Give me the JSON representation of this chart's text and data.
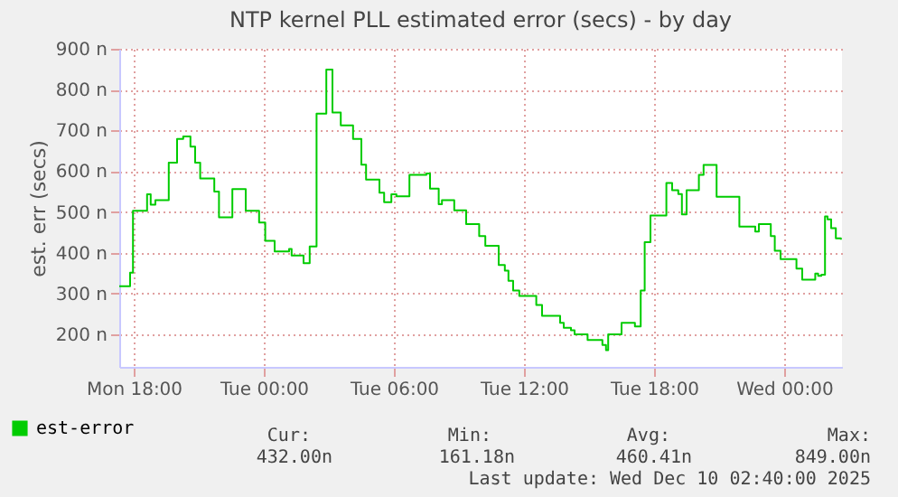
{
  "chart_data": {
    "type": "step",
    "title": "NTP kernel PLL estimated error (secs) - by day",
    "ylabel": "est. err (secs)",
    "xlim": [
      "2025-12-08T17:20",
      "2025-12-10T02:40"
    ],
    "xticks": [
      {
        "value": "2025-12-08T18:00",
        "label": "Mon 18:00"
      },
      {
        "value": "2025-12-09T00:00",
        "label": "Tue 00:00"
      },
      {
        "value": "2025-12-09T06:00",
        "label": "Tue 06:00"
      },
      {
        "value": "2025-12-09T12:00",
        "label": "Tue 12:00"
      },
      {
        "value": "2025-12-09T18:00",
        "label": "Tue 18:00"
      },
      {
        "value": "2025-12-10T00:00",
        "label": "Wed 00:00"
      }
    ],
    "ylim": [
      120,
      900
    ],
    "yticks": [
      {
        "value": 200,
        "label": "200 n"
      },
      {
        "value": 300,
        "label": "300 n"
      },
      {
        "value": 400,
        "label": "400 n"
      },
      {
        "value": 500,
        "label": "500 n"
      },
      {
        "value": 600,
        "label": "600 n"
      },
      {
        "value": 700,
        "label": "700 n"
      },
      {
        "value": 800,
        "label": "800 n"
      },
      {
        "value": 900,
        "label": "900 n"
      }
    ],
    "grid": true,
    "legend": "bottom",
    "line_style": "solid",
    "series": [
      {
        "name": "est-error",
        "color": "#00cc00",
        "x": [
          "2025-12-08T17:20",
          "2025-12-08T17:45",
          "2025-12-08T17:50",
          "2025-12-08T17:58",
          "2025-12-08T18:23",
          "2025-12-08T18:37",
          "2025-12-08T18:47",
          "2025-12-08T19:00",
          "2025-12-08T19:26",
          "2025-12-08T19:37",
          "2025-12-08T19:53",
          "2025-12-08T20:00",
          "2025-12-08T20:17",
          "2025-12-08T20:26",
          "2025-12-08T20:37",
          "2025-12-08T20:50",
          "2025-12-08T21:04",
          "2025-12-08T21:33",
          "2025-12-08T21:43",
          "2025-12-08T21:56",
          "2025-12-08T22:23",
          "2025-12-08T22:33",
          "2025-12-08T22:56",
          "2025-12-08T23:10",
          "2025-12-08T23:37",
          "2025-12-08T23:47",
          "2025-12-09T00:04",
          "2025-12-09T00:23",
          "2025-12-09T00:30",
          "2025-12-09T01:03",
          "2025-12-09T01:10",
          "2025-12-09T01:17",
          "2025-12-09T01:40",
          "2025-12-09T01:50",
          "2025-12-09T02:00",
          "2025-12-09T02:07",
          "2025-12-09T02:20",
          "2025-12-09T02:26",
          "2025-12-09T02:43",
          "2025-12-09T02:53",
          "2025-12-09T03:00",
          "2025-12-09T03:10",
          "2025-12-09T03:23",
          "2025-12-09T03:33",
          "2025-12-09T03:56",
          "2025-12-09T04:07",
          "2025-12-09T04:20",
          "2025-12-09T04:30",
          "2025-12-09T04:43",
          "2025-12-09T05:10",
          "2025-12-09T05:20",
          "2025-12-09T05:33",
          "2025-12-09T05:47",
          "2025-12-09T05:53",
          "2025-12-09T06:07",
          "2025-12-09T06:37",
          "2025-12-09T06:43",
          "2025-12-09T07:30",
          "2025-12-09T07:40",
          "2025-12-09T08:04",
          "2025-12-09T08:13",
          "2025-12-09T08:40",
          "2025-12-09T08:47",
          "2025-12-09T09:10",
          "2025-12-09T09:20",
          "2025-12-09T09:50",
          "2025-12-09T09:56",
          "2025-12-09T10:13",
          "2025-12-09T10:40",
          "2025-12-09T10:50",
          "2025-12-09T11:07",
          "2025-12-09T11:17",
          "2025-12-09T11:30",
          "2025-12-09T11:47",
          "2025-12-09T12:23",
          "2025-12-09T12:34",
          "2025-12-09T12:50",
          "2025-12-09T13:20",
          "2025-12-09T13:40",
          "2025-12-09T13:50",
          "2025-12-09T14:10",
          "2025-12-09T14:20",
          "2025-12-09T14:50",
          "2025-12-09T14:56",
          "2025-12-09T15:23",
          "2025-12-09T15:37",
          "2025-12-09T15:47",
          "2025-12-09T15:53",
          "2025-12-09T16:23",
          "2025-12-09T16:30",
          "2025-12-09T16:56",
          "2025-12-09T17:07",
          "2025-12-09T17:13",
          "2025-12-09T17:23",
          "2025-12-09T17:34",
          "2025-12-09T17:50",
          "2025-12-09T18:23",
          "2025-12-09T18:34",
          "2025-12-09T18:50",
          "2025-12-09T19:07",
          "2025-12-09T19:17",
          "2025-12-09T19:30",
          "2025-12-09T19:50",
          "2025-12-09T20:04",
          "2025-12-09T20:17",
          "2025-12-09T20:43",
          "2025-12-09T20:53",
          "2025-12-09T21:40",
          "2025-12-09T21:56",
          "2025-12-09T22:30",
          "2025-12-09T22:40",
          "2025-12-09T22:50",
          "2025-12-09T23:13",
          "2025-12-09T23:23",
          "2025-12-09T23:34",
          "2025-12-09T23:50",
          "2025-12-10T00:23",
          "2025-12-10T00:34",
          "2025-12-10T00:50",
          "2025-12-10T01:20",
          "2025-12-10T01:26",
          "2025-12-10T01:34",
          "2025-12-10T01:43",
          "2025-12-10T01:53",
          "2025-12-10T02:00",
          "2025-12-10T02:10",
          "2025-12-10T02:23",
          "2025-12-10T02:37"
        ],
        "values": [
          318,
          318,
          351,
          503,
          503,
          543,
          518,
          529,
          529,
          621,
          621,
          679,
          685,
          685,
          660,
          621,
          582,
          582,
          550,
          487,
          487,
          556,
          556,
          503,
          503,
          474,
          429,
          429,
          403,
          403,
          409,
          393,
          393,
          374,
          374,
          415,
          415,
          741,
          741,
          849,
          849,
          744,
          744,
          712,
          712,
          679,
          679,
          616,
          579,
          579,
          547,
          524,
          524,
          543,
          538,
          538,
          591,
          594,
          557,
          519,
          529,
          529,
          504,
          504,
          470,
          470,
          441,
          417,
          417,
          370,
          356,
          331,
          307,
          294,
          294,
          272,
          245,
          245,
          228,
          216,
          210,
          200,
          200,
          186,
          186,
          174,
          161,
          200,
          200,
          228,
          228,
          219,
          219,
          307,
          426,
          491,
          491,
          571,
          553,
          544,
          494,
          553,
          553,
          591,
          615,
          615,
          537,
          537,
          464,
          464,
          452,
          470,
          470,
          441,
          405,
          384,
          384,
          361,
          334,
          334,
          349,
          343,
          346,
          489,
          482,
          460,
          435,
          432
        ]
      }
    ],
    "annotations": [
      "Cur:",
      "Min:",
      "Avg:",
      "Max:",
      "432.00n",
      "161.18n",
      "460.41n",
      "849.00n",
      "Last update: Wed Dec 10 02:40:00 2025"
    ]
  }
}
